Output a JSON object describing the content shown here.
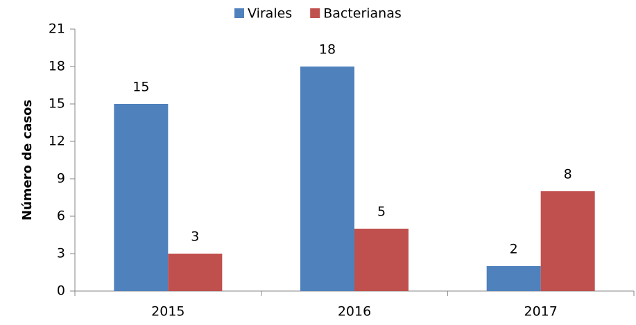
{
  "chart_data": {
    "type": "bar",
    "ylabel": "Número de casos",
    "categories": [
      "2015",
      "2016",
      "2017"
    ],
    "series": [
      {
        "name": "Virales",
        "color": "#4f81bd",
        "values": [
          15,
          18,
          2
        ]
      },
      {
        "name": "Bacterianas",
        "color": "#c0504d",
        "values": [
          3,
          5,
          8
        ]
      }
    ],
    "ylim": [
      0,
      21
    ],
    "yticks": [
      0,
      3,
      6,
      9,
      12,
      15,
      18,
      21
    ],
    "grid": false,
    "legend": "top"
  }
}
